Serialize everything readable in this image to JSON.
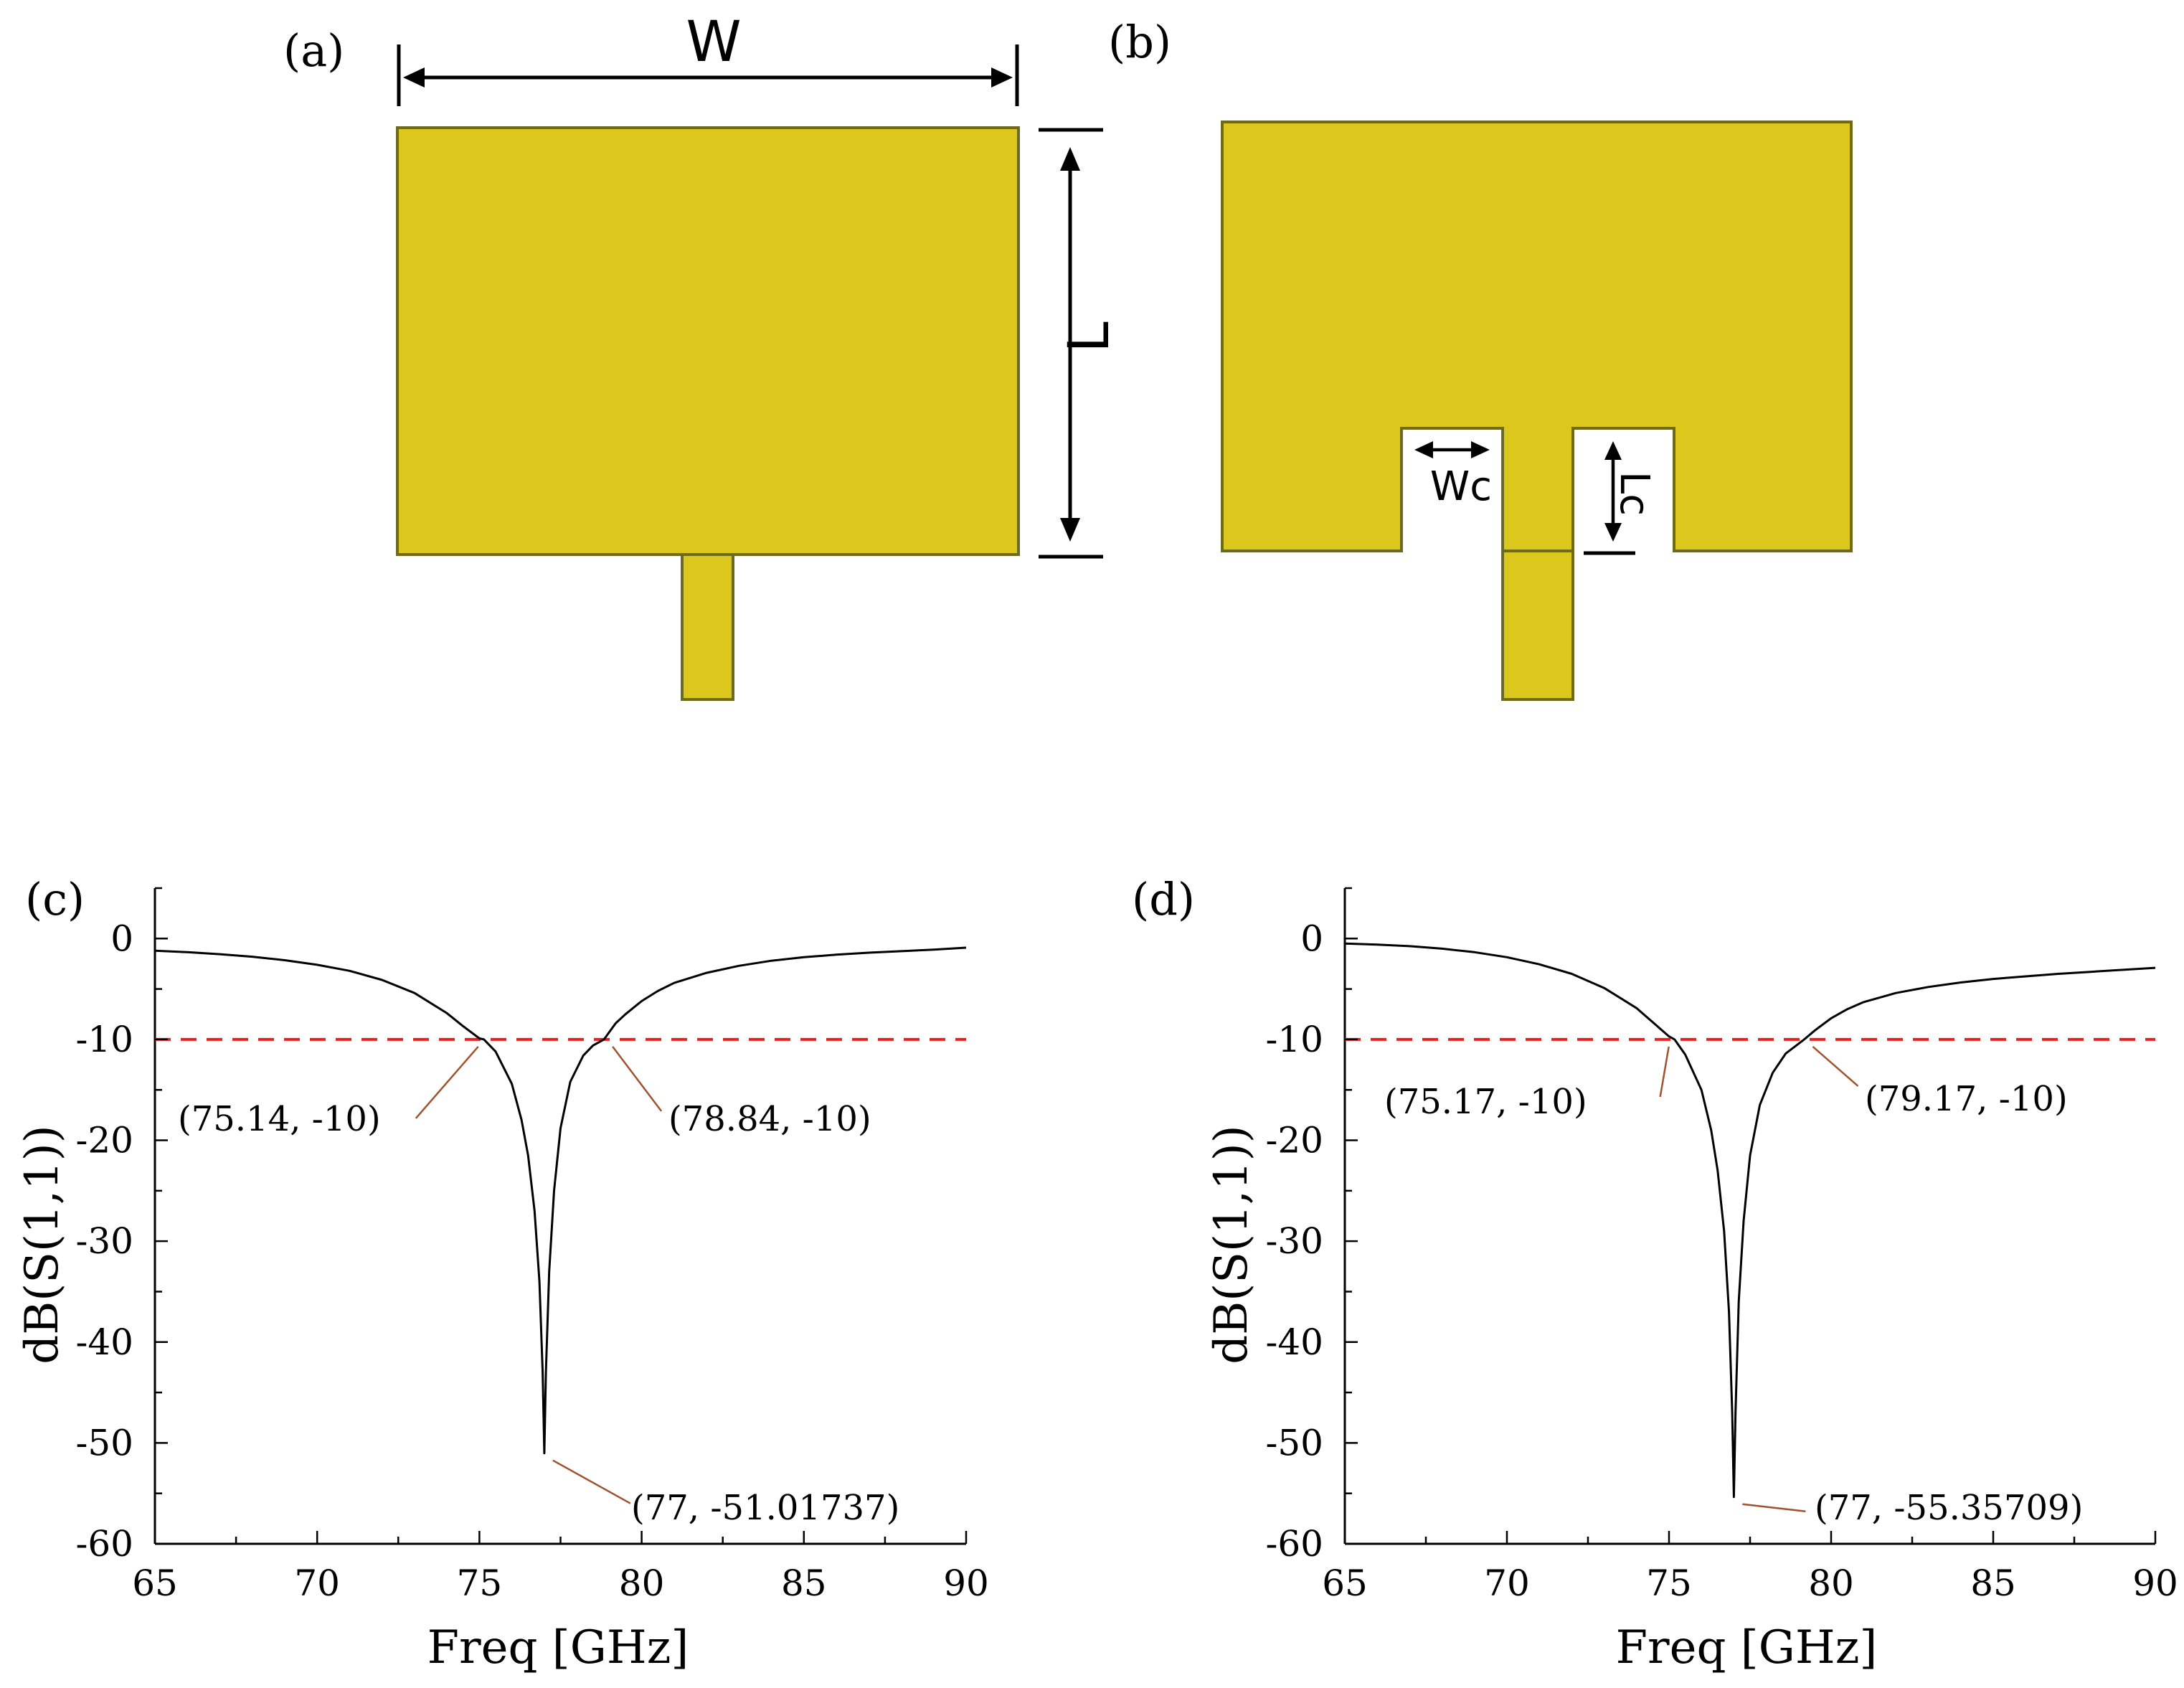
{
  "panels": {
    "a": {
      "label": "(a)",
      "dim_w": "W",
      "dim_l": "L"
    },
    "b": {
      "label": "(b)",
      "dim_wc": "Wc",
      "dim_lc": "Lc"
    }
  },
  "colors": {
    "patch_fill": "#dcc81d",
    "patch_edge": "#6b6a1f",
    "curve": "#000000",
    "threshold": "#e8201f",
    "leader": "#a0522d"
  },
  "chart_data": [
    {
      "panel_label": "(c)",
      "type": "line",
      "xlabel": "Freq [GHz]",
      "ylabel": "dB(S(1,1))",
      "xlim": [
        65,
        90
      ],
      "ylim": [
        -60,
        5
      ],
      "xticks": [
        "65",
        "70",
        "75",
        "80",
        "85",
        "90"
      ],
      "yticks": [
        "0",
        "-10",
        "-20",
        "-30",
        "-40",
        "-50",
        "-60"
      ],
      "grid": false,
      "threshold": -10,
      "series": [
        {
          "x": [
            65,
            66,
            67,
            68,
            69,
            70,
            71,
            72,
            73,
            74,
            74.5,
            75,
            75.14,
            75.5,
            76,
            76.3,
            76.5,
            76.7,
            76.85,
            76.95,
            77,
            77.05,
            77.15,
            77.3,
            77.5,
            77.8,
            78.2,
            78.5,
            78.84,
            79.2,
            79.5,
            80,
            80.5,
            81,
            82,
            83,
            84,
            85,
            86,
            87,
            88,
            89,
            90
          ],
          "y": [
            -1.2,
            -1.35,
            -1.55,
            -1.8,
            -2.15,
            -2.6,
            -3.2,
            -4.1,
            -5.4,
            -7.4,
            -8.7,
            -9.9,
            -10,
            -11.2,
            -14.4,
            -18,
            -21.5,
            -27,
            -34,
            -43,
            -51.01737,
            -43,
            -33,
            -25,
            -18.8,
            -14.2,
            -11.6,
            -10.6,
            -10,
            -8.4,
            -7.5,
            -6.2,
            -5.2,
            -4.4,
            -3.4,
            -2.7,
            -2.2,
            -1.85,
            -1.6,
            -1.4,
            -1.25,
            -1.1,
            -0.9
          ]
        }
      ],
      "annotations": [
        {
          "text": "(75.14, -10)",
          "x": 75.14,
          "y": -10
        },
        {
          "text": "(78.84, -10)",
          "x": 78.84,
          "y": -10
        },
        {
          "text": "(77, -51.01737)",
          "x": 77,
          "y": -51.01737
        }
      ]
    },
    {
      "panel_label": "(d)",
      "type": "line",
      "xlabel": "Freq [GHz]",
      "ylabel": "dB(S(1,1))",
      "xlim": [
        65,
        90
      ],
      "ylim": [
        -60,
        5
      ],
      "xticks": [
        "65",
        "70",
        "75",
        "80",
        "85",
        "90"
      ],
      "yticks": [
        "0",
        "-10",
        "-20",
        "-30",
        "-40",
        "-50",
        "-60"
      ],
      "grid": false,
      "threshold": -10,
      "series": [
        {
          "x": [
            65,
            66,
            67,
            68,
            69,
            70,
            71,
            72,
            73,
            74,
            74.5,
            75,
            75.17,
            75.5,
            76,
            76.3,
            76.5,
            76.7,
            76.85,
            76.95,
            77,
            77.05,
            77.15,
            77.3,
            77.5,
            77.8,
            78.2,
            78.6,
            79.17,
            79.5,
            80,
            80.5,
            81,
            82,
            83,
            84,
            85,
            86,
            87,
            88,
            89,
            90
          ],
          "y": [
            -0.5,
            -0.6,
            -0.75,
            -1.0,
            -1.35,
            -1.85,
            -2.55,
            -3.5,
            -4.9,
            -6.9,
            -8.3,
            -9.7,
            -10,
            -11.5,
            -15,
            -19,
            -23,
            -29,
            -37,
            -47,
            -55.35709,
            -47,
            -36,
            -28,
            -21.5,
            -16.5,
            -13.3,
            -11.4,
            -10,
            -9.1,
            -7.9,
            -7.0,
            -6.3,
            -5.4,
            -4.8,
            -4.35,
            -4.0,
            -3.75,
            -3.5,
            -3.3,
            -3.1,
            -2.9
          ]
        }
      ],
      "annotations": [
        {
          "text": "(75.17, -10)",
          "x": 75.17,
          "y": -10
        },
        {
          "text": "(79.17, -10)",
          "x": 79.17,
          "y": -10
        },
        {
          "text": "(77, -55.35709)",
          "x": 77,
          "y": -55.35709
        }
      ]
    }
  ]
}
